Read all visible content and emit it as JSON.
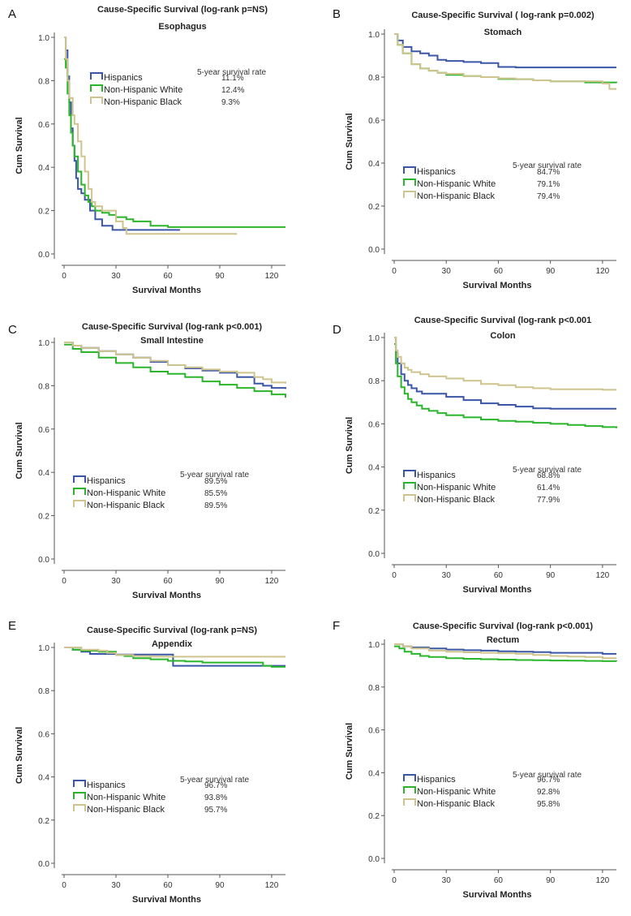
{
  "colors": {
    "hispanics": "#3b56a6",
    "nhw": "#2bb52b",
    "nhb": "#cfc48e"
  },
  "chart_data": [
    {
      "panel": "A",
      "type": "line",
      "title": "Cause-Specific Survival (log-rank p=NS)",
      "subtitle": "Esophagus",
      "xlabel": "Survival Months",
      "ylabel": "Cum Survival",
      "xlim": [
        0,
        128
      ],
      "ylim": [
        0,
        1
      ],
      "xticks": [
        "0",
        "30",
        "60",
        "90",
        "120"
      ],
      "yticks": [
        "0.0",
        "0.2",
        "0.4",
        "0.6",
        "0.8",
        "1.0"
      ],
      "legend_title": "5-year survival rate",
      "legend_position": "top-right",
      "series": [
        {
          "name": "Hispanics",
          "rate": "11.1%",
          "x": [
            0,
            1,
            2,
            3,
            4,
            5,
            6,
            7,
            8,
            10,
            12,
            15,
            18,
            22,
            28,
            40,
            67
          ],
          "y": [
            1.0,
            0.94,
            0.82,
            0.7,
            0.58,
            0.5,
            0.43,
            0.35,
            0.3,
            0.28,
            0.25,
            0.2,
            0.16,
            0.13,
            0.111,
            0.111,
            0.111
          ]
        },
        {
          "name": "Non-Hispanic White",
          "rate": "12.4%",
          "x": [
            0,
            1,
            2,
            3,
            4,
            5,
            6,
            8,
            10,
            12,
            14,
            16,
            18,
            22,
            26,
            30,
            36,
            40,
            50,
            60,
            128
          ],
          "y": [
            0.9,
            0.86,
            0.74,
            0.64,
            0.56,
            0.5,
            0.45,
            0.38,
            0.32,
            0.27,
            0.24,
            0.22,
            0.2,
            0.19,
            0.18,
            0.17,
            0.16,
            0.15,
            0.13,
            0.124,
            0.124
          ]
        },
        {
          "name": "Non-Hispanic Black",
          "rate": "9.3%",
          "x": [
            0,
            1,
            2,
            3,
            5,
            6,
            8,
            10,
            12,
            14,
            16,
            18,
            22,
            30,
            34,
            36,
            100
          ],
          "y": [
            1.0,
            0.9,
            0.8,
            0.72,
            0.64,
            0.6,
            0.52,
            0.45,
            0.38,
            0.3,
            0.24,
            0.22,
            0.2,
            0.15,
            0.12,
            0.093,
            0.093
          ]
        }
      ]
    },
    {
      "panel": "B",
      "type": "line",
      "title": "Cause-Specific Survival ( log-rank p=0.002)",
      "subtitle": "Stomach",
      "xlabel": "Survival Months",
      "ylabel": "Cum Survival",
      "xlim": [
        0,
        128
      ],
      "ylim": [
        0,
        1
      ],
      "xticks": [
        "0",
        "30",
        "60",
        "90",
        "120"
      ],
      "yticks": [
        "0.0",
        "0.2",
        "0.4",
        "0.6",
        "0.8",
        "1.0"
      ],
      "legend_title": "5-year survival rate",
      "legend_position": "middle-right",
      "series": [
        {
          "name": "Hispanics",
          "rate": "84.7%",
          "x": [
            0,
            2,
            5,
            10,
            15,
            20,
            25,
            30,
            40,
            50,
            60,
            70,
            80,
            90,
            100,
            110,
            128
          ],
          "y": [
            1.0,
            0.97,
            0.94,
            0.92,
            0.91,
            0.9,
            0.88,
            0.875,
            0.87,
            0.865,
            0.847,
            0.845,
            0.845,
            0.845,
            0.845,
            0.845,
            0.845
          ]
        },
        {
          "name": "Non-Hispanic White",
          "rate": "79.1%",
          "x": [
            0,
            2,
            5,
            10,
            15,
            20,
            25,
            30,
            40,
            50,
            60,
            70,
            80,
            90,
            100,
            110,
            120,
            128
          ],
          "y": [
            1.0,
            0.95,
            0.91,
            0.86,
            0.84,
            0.83,
            0.82,
            0.81,
            0.805,
            0.8,
            0.791,
            0.79,
            0.785,
            0.78,
            0.78,
            0.775,
            0.775,
            0.773
          ]
        },
        {
          "name": "Non-Hispanic Black",
          "rate": "79.4%",
          "x": [
            0,
            2,
            5,
            10,
            15,
            20,
            25,
            30,
            40,
            50,
            60,
            70,
            80,
            90,
            100,
            110,
            120,
            124,
            128
          ],
          "y": [
            1.0,
            0.95,
            0.91,
            0.86,
            0.84,
            0.83,
            0.82,
            0.815,
            0.805,
            0.8,
            0.794,
            0.79,
            0.785,
            0.78,
            0.78,
            0.78,
            0.77,
            0.745,
            0.745
          ]
        }
      ]
    },
    {
      "panel": "C",
      "type": "line",
      "title": "Cause-Specific Survival (log-rank p<0.001)",
      "subtitle": "Small Intestine",
      "xlabel": "Survival Months",
      "ylabel": "Cum Survival",
      "xlim": [
        0,
        128
      ],
      "ylim": [
        0,
        1
      ],
      "xticks": [
        "0",
        "30",
        "60",
        "90",
        "120"
      ],
      "yticks": [
        "0.0",
        "0.2",
        "0.4",
        "0.6",
        "0.8",
        "1.0"
      ],
      "legend_title": "5-year survival rate",
      "legend_position": "middle",
      "series": [
        {
          "name": "Hispanics",
          "rate": "89.5%",
          "x": [
            0,
            5,
            10,
            20,
            30,
            40,
            50,
            60,
            70,
            80,
            90,
            100,
            110,
            115,
            120,
            128
          ],
          "y": [
            1.0,
            0.985,
            0.975,
            0.96,
            0.945,
            0.93,
            0.91,
            0.895,
            0.88,
            0.87,
            0.86,
            0.84,
            0.81,
            0.8,
            0.79,
            0.785
          ]
        },
        {
          "name": "Non-Hispanic White",
          "rate": "85.5%",
          "x": [
            0,
            5,
            10,
            20,
            30,
            40,
            50,
            60,
            70,
            80,
            90,
            100,
            110,
            120,
            128
          ],
          "y": [
            0.99,
            0.97,
            0.955,
            0.93,
            0.905,
            0.885,
            0.865,
            0.855,
            0.84,
            0.82,
            0.805,
            0.79,
            0.775,
            0.76,
            0.745
          ]
        },
        {
          "name": "Non-Hispanic Black",
          "rate": "89.5%",
          "x": [
            0,
            5,
            10,
            20,
            30,
            40,
            50,
            60,
            70,
            80,
            90,
            100,
            110,
            115,
            120,
            128
          ],
          "y": [
            1.0,
            0.985,
            0.975,
            0.96,
            0.945,
            0.93,
            0.915,
            0.895,
            0.885,
            0.875,
            0.865,
            0.86,
            0.84,
            0.83,
            0.815,
            0.81
          ]
        }
      ]
    },
    {
      "panel": "D",
      "type": "line",
      "title": "Cause-Specific Survival (log-rank p<0.001",
      "subtitle": "Colon",
      "xlabel": "Survival Months",
      "ylabel": "Cum Survival",
      "xlim": [
        0,
        128
      ],
      "ylim": [
        0,
        1
      ],
      "xticks": [
        "0",
        "30",
        "60",
        "90",
        "120"
      ],
      "yticks": [
        "0.0",
        "0.2",
        "0.4",
        "0.6",
        "0.8",
        "1.0"
      ],
      "legend_title": "5-year survival rate",
      "legend_position": "middle-right",
      "series": [
        {
          "name": "Hispanics",
          "rate": "68.8%",
          "x": [
            0,
            1,
            2,
            4,
            6,
            8,
            10,
            13,
            16,
            20,
            30,
            40,
            50,
            60,
            70,
            80,
            90,
            100,
            110,
            128
          ],
          "y": [
            1.0,
            0.93,
            0.88,
            0.83,
            0.8,
            0.78,
            0.765,
            0.75,
            0.74,
            0.74,
            0.725,
            0.71,
            0.695,
            0.688,
            0.68,
            0.672,
            0.67,
            0.67,
            0.67,
            0.67
          ]
        },
        {
          "name": "Non-Hispanic White",
          "rate": "61.4%",
          "x": [
            0,
            1,
            2,
            4,
            6,
            8,
            10,
            13,
            16,
            20,
            25,
            30,
            40,
            50,
            60,
            70,
            80,
            90,
            100,
            110,
            120,
            128
          ],
          "y": [
            0.97,
            0.88,
            0.82,
            0.77,
            0.74,
            0.715,
            0.7,
            0.685,
            0.67,
            0.66,
            0.65,
            0.64,
            0.63,
            0.62,
            0.614,
            0.61,
            0.605,
            0.6,
            0.595,
            0.59,
            0.585,
            0.58
          ]
        },
        {
          "name": "Non-Hispanic Black",
          "rate": "77.9%",
          "x": [
            0,
            1,
            2,
            4,
            6,
            8,
            10,
            15,
            20,
            30,
            40,
            50,
            60,
            70,
            80,
            90,
            100,
            110,
            120,
            128
          ],
          "y": [
            1.0,
            0.94,
            0.91,
            0.88,
            0.86,
            0.85,
            0.84,
            0.83,
            0.82,
            0.81,
            0.8,
            0.785,
            0.779,
            0.77,
            0.765,
            0.76,
            0.76,
            0.76,
            0.758,
            0.758
          ]
        }
      ]
    },
    {
      "panel": "E",
      "type": "line",
      "title": "Cause-Specific Survival (log-rank p=NS)",
      "subtitle": "Appendix",
      "xlabel": "Survival Months",
      "ylabel": "Cum Survival",
      "xlim": [
        0,
        128
      ],
      "ylim": [
        0,
        1
      ],
      "xticks": [
        "0",
        "30",
        "60",
        "90",
        "120"
      ],
      "yticks": [
        "0.0",
        "0.2",
        "0.4",
        "0.6",
        "0.8",
        "1.0"
      ],
      "legend_title": "5-year survival rate",
      "legend_position": "middle",
      "series": [
        {
          "name": "Hispanics",
          "rate": "96.7%",
          "x": [
            0,
            5,
            10,
            15,
            20,
            30,
            40,
            50,
            60,
            62,
            63,
            70,
            80,
            90,
            100,
            110,
            120,
            128
          ],
          "y": [
            1.0,
            0.99,
            0.98,
            0.97,
            0.97,
            0.967,
            0.967,
            0.967,
            0.967,
            0.967,
            0.915,
            0.915,
            0.915,
            0.915,
            0.915,
            0.915,
            0.915,
            0.915
          ]
        },
        {
          "name": "Non-Hispanic White",
          "rate": "93.8%",
          "x": [
            0,
            5,
            10,
            20,
            30,
            35,
            40,
            50,
            60,
            70,
            80,
            90,
            100,
            110,
            115,
            120,
            128
          ],
          "y": [
            1.0,
            0.99,
            0.985,
            0.98,
            0.965,
            0.96,
            0.95,
            0.945,
            0.938,
            0.935,
            0.93,
            0.93,
            0.93,
            0.93,
            0.915,
            0.91,
            0.91
          ]
        },
        {
          "name": "Non-Hispanic Black",
          "rate": "95.7%",
          "x": [
            0,
            10,
            20,
            25,
            30,
            40,
            50,
            60,
            70,
            80,
            90,
            100,
            110,
            120,
            128
          ],
          "y": [
            1.0,
            0.99,
            0.985,
            0.975,
            0.965,
            0.96,
            0.958,
            0.957,
            0.957,
            0.957,
            0.957,
            0.957,
            0.957,
            0.957,
            0.957
          ]
        }
      ]
    },
    {
      "panel": "F",
      "type": "line",
      "title": "Cause-Specific Survival (log-rank p<0.001)",
      "subtitle": "Rectum",
      "xlabel": "Survival Months",
      "ylabel": "Cum Survival",
      "xlim": [
        0,
        128
      ],
      "ylim": [
        0,
        1
      ],
      "xticks": [
        "0",
        "30",
        "60",
        "90",
        "120"
      ],
      "yticks": [
        "0.0",
        "0.2",
        "0.4",
        "0.6",
        "0.8",
        "1.0"
      ],
      "legend_title": "5-year survival rate",
      "legend_position": "middle-right",
      "series": [
        {
          "name": "Hispanics",
          "rate": "96.7%",
          "x": [
            0,
            5,
            10,
            20,
            30,
            40,
            50,
            60,
            70,
            80,
            90,
            100,
            110,
            120,
            128
          ],
          "y": [
            1.0,
            0.99,
            0.985,
            0.98,
            0.975,
            0.972,
            0.97,
            0.967,
            0.965,
            0.963,
            0.96,
            0.96,
            0.96,
            0.955,
            0.955
          ]
        },
        {
          "name": "Non-Hispanic White",
          "rate": "92.8%",
          "x": [
            0,
            3,
            6,
            10,
            15,
            20,
            30,
            40,
            50,
            60,
            70,
            80,
            90,
            100,
            110,
            120,
            128
          ],
          "y": [
            0.99,
            0.98,
            0.965,
            0.955,
            0.945,
            0.94,
            0.935,
            0.932,
            0.93,
            0.928,
            0.926,
            0.925,
            0.924,
            0.923,
            0.922,
            0.921,
            0.92
          ]
        },
        {
          "name": "Non-Hispanic Black",
          "rate": "95.8%",
          "x": [
            0,
            5,
            10,
            20,
            30,
            40,
            50,
            60,
            70,
            80,
            90,
            100,
            110,
            120,
            128
          ],
          "y": [
            1.0,
            0.99,
            0.98,
            0.97,
            0.965,
            0.962,
            0.96,
            0.958,
            0.955,
            0.95,
            0.945,
            0.942,
            0.94,
            0.935,
            0.935
          ]
        }
      ]
    }
  ]
}
